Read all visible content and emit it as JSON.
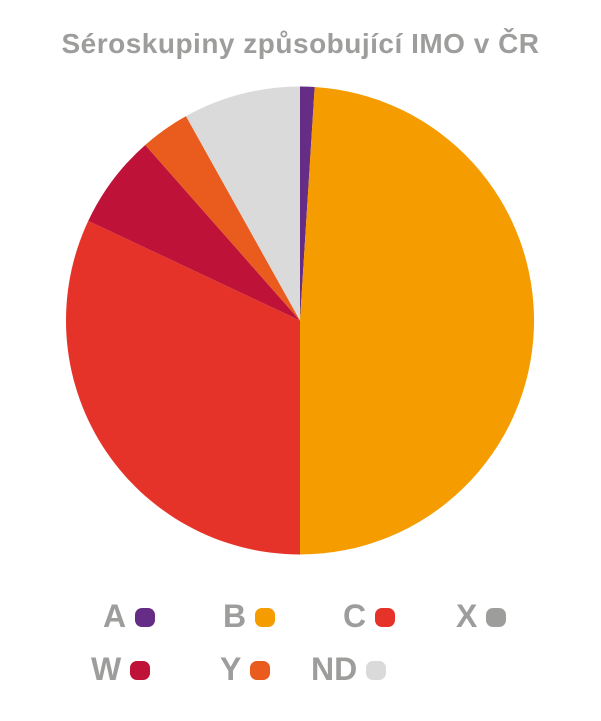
{
  "header": {
    "title": "Séroskupiny způsobující IMO v ČR"
  },
  "colors": {
    "text_gray": "#9d9d9c",
    "background": "#ffffff"
  },
  "chart_data": {
    "type": "pie",
    "title": "Séroskupiny způsobující IMO v ČR",
    "start_angle_deg": 0,
    "direction": "clockwise",
    "legend_position": "bottom",
    "series": [
      {
        "label": "A",
        "value": 1.0,
        "color": "#662d86"
      },
      {
        "label": "B",
        "value": 49.0,
        "color": "#f59c00"
      },
      {
        "label": "C",
        "value": 32.0,
        "color": "#e6332a"
      },
      {
        "label": "X",
        "value": 0.0,
        "color": "#9d9d9c"
      },
      {
        "label": "W",
        "value": 6.5,
        "color": "#bf1238"
      },
      {
        "label": "Y",
        "value": 3.4,
        "color": "#ea5b1e"
      },
      {
        "label": "ND",
        "value": 8.1,
        "color": "#dadada"
      }
    ]
  },
  "legend": {
    "items": [
      {
        "label": "A",
        "color": "#662d86"
      },
      {
        "label": "B",
        "color": "#f59c00"
      },
      {
        "label": "C",
        "color": "#e6332a"
      },
      {
        "label": "X",
        "color": "#9d9d9c"
      },
      {
        "label": "W",
        "color": "#bf1238"
      },
      {
        "label": "Y",
        "color": "#ea5b1e"
      },
      {
        "label": "ND",
        "color": "#dadada"
      }
    ]
  }
}
